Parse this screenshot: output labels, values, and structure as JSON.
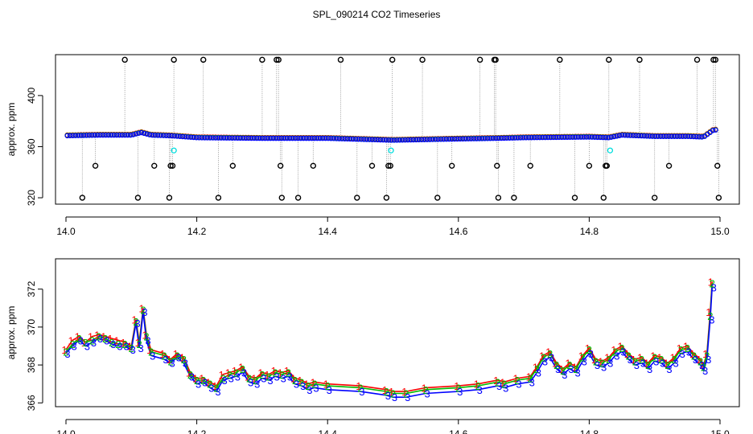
{
  "chart_data": [
    {
      "type": "scatter",
      "title": "SPL_090214  CO2 Timeseries",
      "xlabel": "",
      "ylabel": "approx. ppm",
      "xlim": [
        14.0,
        15.0
      ],
      "ylim": [
        315,
        432
      ],
      "xticks": [
        "14.0",
        "14.2",
        "14.4",
        "14.6",
        "14.8",
        "15.0"
      ],
      "yticks": [
        "320",
        "360",
        "400"
      ],
      "grid": false,
      "legend": "none",
      "colors": {
        "series1": "#ff0000",
        "series2": "#00bb00",
        "series3": "#0000ff",
        "outlier": "#000000",
        "flag": "#00dddd",
        "drop": "#888888"
      },
      "baseline": {
        "x": [
          14.0,
          14.05,
          14.1,
          14.115,
          14.13,
          14.16,
          14.2,
          14.3,
          14.33,
          14.4,
          14.5,
          14.55,
          14.6,
          14.66,
          14.7,
          14.8,
          14.83,
          14.85,
          14.9,
          14.95,
          14.975,
          14.99
        ],
        "y": [
          368.5,
          369,
          369,
          371,
          369,
          368.5,
          367,
          366.5,
          366.5,
          366.5,
          365,
          365.5,
          366,
          366.5,
          367,
          367.5,
          367,
          369,
          368,
          368,
          367.5,
          373
        ]
      },
      "outliers": [
        {
          "x": 14.025,
          "y": 320
        },
        {
          "x": 14.045,
          "y": 345
        },
        {
          "x": 14.09,
          "y": 428
        },
        {
          "x": 14.11,
          "y": 320
        },
        {
          "x": 14.135,
          "y": 345
        },
        {
          "x": 14.158,
          "y": 320
        },
        {
          "x": 14.16,
          "y": 345
        },
        {
          "x": 14.163,
          "y": 345
        },
        {
          "x": 14.165,
          "y": 428
        },
        {
          "x": 14.21,
          "y": 428
        },
        {
          "x": 14.233,
          "y": 320
        },
        {
          "x": 14.255,
          "y": 345
        },
        {
          "x": 14.3,
          "y": 428
        },
        {
          "x": 14.322,
          "y": 428
        },
        {
          "x": 14.325,
          "y": 428
        },
        {
          "x": 14.328,
          "y": 345
        },
        {
          "x": 14.33,
          "y": 320
        },
        {
          "x": 14.355,
          "y": 320
        },
        {
          "x": 14.378,
          "y": 345
        },
        {
          "x": 14.42,
          "y": 428
        },
        {
          "x": 14.445,
          "y": 320
        },
        {
          "x": 14.468,
          "y": 345
        },
        {
          "x": 14.49,
          "y": 320
        },
        {
          "x": 14.493,
          "y": 345
        },
        {
          "x": 14.496,
          "y": 345
        },
        {
          "x": 14.499,
          "y": 428
        },
        {
          "x": 14.545,
          "y": 428
        },
        {
          "x": 14.568,
          "y": 320
        },
        {
          "x": 14.59,
          "y": 345
        },
        {
          "x": 14.633,
          "y": 428
        },
        {
          "x": 14.655,
          "y": 428
        },
        {
          "x": 14.657,
          "y": 428
        },
        {
          "x": 14.659,
          "y": 345
        },
        {
          "x": 14.661,
          "y": 320
        },
        {
          "x": 14.685,
          "y": 320
        },
        {
          "x": 14.71,
          "y": 345
        },
        {
          "x": 14.755,
          "y": 428
        },
        {
          "x": 14.778,
          "y": 320
        },
        {
          "x": 14.8,
          "y": 345
        },
        {
          "x": 14.822,
          "y": 320
        },
        {
          "x": 14.825,
          "y": 345
        },
        {
          "x": 14.827,
          "y": 345
        },
        {
          "x": 14.83,
          "y": 428
        },
        {
          "x": 14.877,
          "y": 428
        },
        {
          "x": 14.9,
          "y": 320
        },
        {
          "x": 14.922,
          "y": 345
        },
        {
          "x": 14.965,
          "y": 428
        },
        {
          "x": 14.99,
          "y": 428
        },
        {
          "x": 14.993,
          "y": 428
        },
        {
          "x": 14.996,
          "y": 345
        },
        {
          "x": 14.998,
          "y": 320
        }
      ],
      "flags": [
        {
          "x": 14.165,
          "y": 357
        },
        {
          "x": 14.497,
          "y": 357
        },
        {
          "x": 14.832,
          "y": 357
        }
      ]
    },
    {
      "type": "line",
      "title": "",
      "xlabel": "",
      "ylabel": "approx. ppm",
      "xlim": [
        14.0,
        15.0
      ],
      "ylim": [
        365.8,
        373.6
      ],
      "xticks": [
        "14.0",
        "14.2",
        "14.4",
        "14.6",
        "14.8",
        "15.0"
      ],
      "yticks": [
        "366",
        "368",
        "370",
        "372"
      ],
      "grid": false,
      "legend": "none",
      "marker_labels": [
        "1",
        "2",
        "3"
      ],
      "x": [
        14.0,
        14.01,
        14.02,
        14.03,
        14.04,
        14.05,
        14.06,
        14.07,
        14.08,
        14.09,
        14.1,
        14.107,
        14.112,
        14.118,
        14.123,
        14.13,
        14.15,
        14.16,
        14.17,
        14.18,
        14.19,
        14.2,
        14.21,
        14.22,
        14.23,
        14.24,
        14.25,
        14.26,
        14.27,
        14.28,
        14.29,
        14.3,
        14.31,
        14.32,
        14.33,
        14.34,
        14.35,
        14.36,
        14.37,
        14.38,
        14.4,
        14.45,
        14.49,
        14.5,
        14.52,
        14.55,
        14.6,
        14.63,
        14.66,
        14.67,
        14.69,
        14.71,
        14.72,
        14.73,
        14.74,
        14.75,
        14.76,
        14.77,
        14.78,
        14.79,
        14.8,
        14.81,
        14.82,
        14.83,
        14.84,
        14.85,
        14.86,
        14.87,
        14.88,
        14.89,
        14.9,
        14.91,
        14.92,
        14.93,
        14.94,
        14.95,
        14.96,
        14.97,
        14.975,
        14.98,
        14.985,
        14.988
      ],
      "series": [
        {
          "values": [
            368.8,
            369.3,
            369.5,
            369.2,
            369.5,
            369.6,
            369.5,
            369.4,
            369.3,
            369.2,
            369.0,
            370.4,
            369.2,
            371.0,
            369.6,
            368.8,
            368.6,
            368.3,
            368.6,
            368.4,
            367.6,
            367.3,
            367.3,
            367.1,
            366.9,
            367.5,
            367.6,
            367.7,
            367.9,
            367.4,
            367.3,
            367.6,
            367.5,
            367.7,
            367.6,
            367.7,
            367.3,
            367.2,
            367.0,
            367.1,
            367.0,
            366.9,
            366.7,
            366.6,
            366.6,
            366.8,
            366.9,
            367.0,
            367.2,
            367.1,
            367.3,
            367.4,
            367.9,
            368.5,
            368.7,
            368.1,
            367.8,
            368.1,
            367.9,
            368.5,
            368.9,
            368.3,
            368.2,
            368.4,
            368.8,
            369.0,
            368.6,
            368.3,
            368.4,
            368.1,
            368.5,
            368.4,
            368.1,
            368.4,
            368.9,
            369.0,
            368.6,
            368.3,
            368.0,
            368.6,
            370.8,
            372.4
          ]
        },
        {
          "values": [
            368.7,
            369.1,
            369.4,
            369.2,
            369.3,
            369.5,
            369.4,
            369.2,
            369.1,
            369.1,
            368.9,
            370.3,
            369.1,
            370.9,
            369.5,
            368.7,
            368.5,
            368.2,
            368.5,
            368.3,
            367.5,
            367.2,
            367.2,
            367.0,
            366.8,
            367.3,
            367.5,
            367.6,
            367.8,
            367.3,
            367.2,
            367.5,
            367.4,
            367.6,
            367.5,
            367.6,
            367.2,
            367.1,
            366.9,
            367.0,
            366.9,
            366.8,
            366.6,
            366.5,
            366.5,
            366.7,
            366.8,
            366.9,
            367.1,
            367.0,
            367.2,
            367.3,
            367.8,
            368.4,
            368.6,
            368.0,
            367.7,
            368.0,
            367.8,
            368.4,
            368.8,
            368.2,
            368.1,
            368.3,
            368.7,
            368.9,
            368.5,
            368.2,
            368.3,
            368.0,
            368.4,
            368.3,
            368.0,
            368.3,
            368.8,
            368.9,
            368.5,
            368.2,
            367.9,
            368.5,
            370.6,
            372.3
          ]
        },
        {
          "values": [
            368.6,
            369.0,
            369.3,
            369.0,
            369.2,
            369.4,
            369.3,
            369.1,
            369.0,
            369.0,
            368.8,
            370.2,
            368.9,
            370.8,
            369.3,
            368.5,
            368.3,
            368.1,
            368.4,
            368.1,
            367.4,
            367.0,
            367.1,
            366.8,
            366.6,
            367.2,
            367.3,
            367.4,
            367.6,
            367.1,
            367.0,
            367.3,
            367.2,
            367.4,
            367.3,
            367.4,
            367.0,
            366.9,
            366.7,
            366.8,
            366.7,
            366.6,
            366.4,
            366.3,
            366.3,
            366.5,
            366.6,
            366.7,
            366.9,
            366.8,
            367.0,
            367.1,
            367.6,
            368.2,
            368.4,
            367.8,
            367.5,
            367.8,
            367.6,
            368.2,
            368.6,
            368.0,
            367.9,
            368.1,
            368.5,
            368.7,
            368.3,
            368.0,
            368.1,
            367.8,
            368.2,
            368.1,
            367.8,
            368.1,
            368.6,
            368.7,
            368.3,
            368.0,
            367.7,
            368.3,
            370.4,
            372.1
          ]
        }
      ]
    }
  ]
}
